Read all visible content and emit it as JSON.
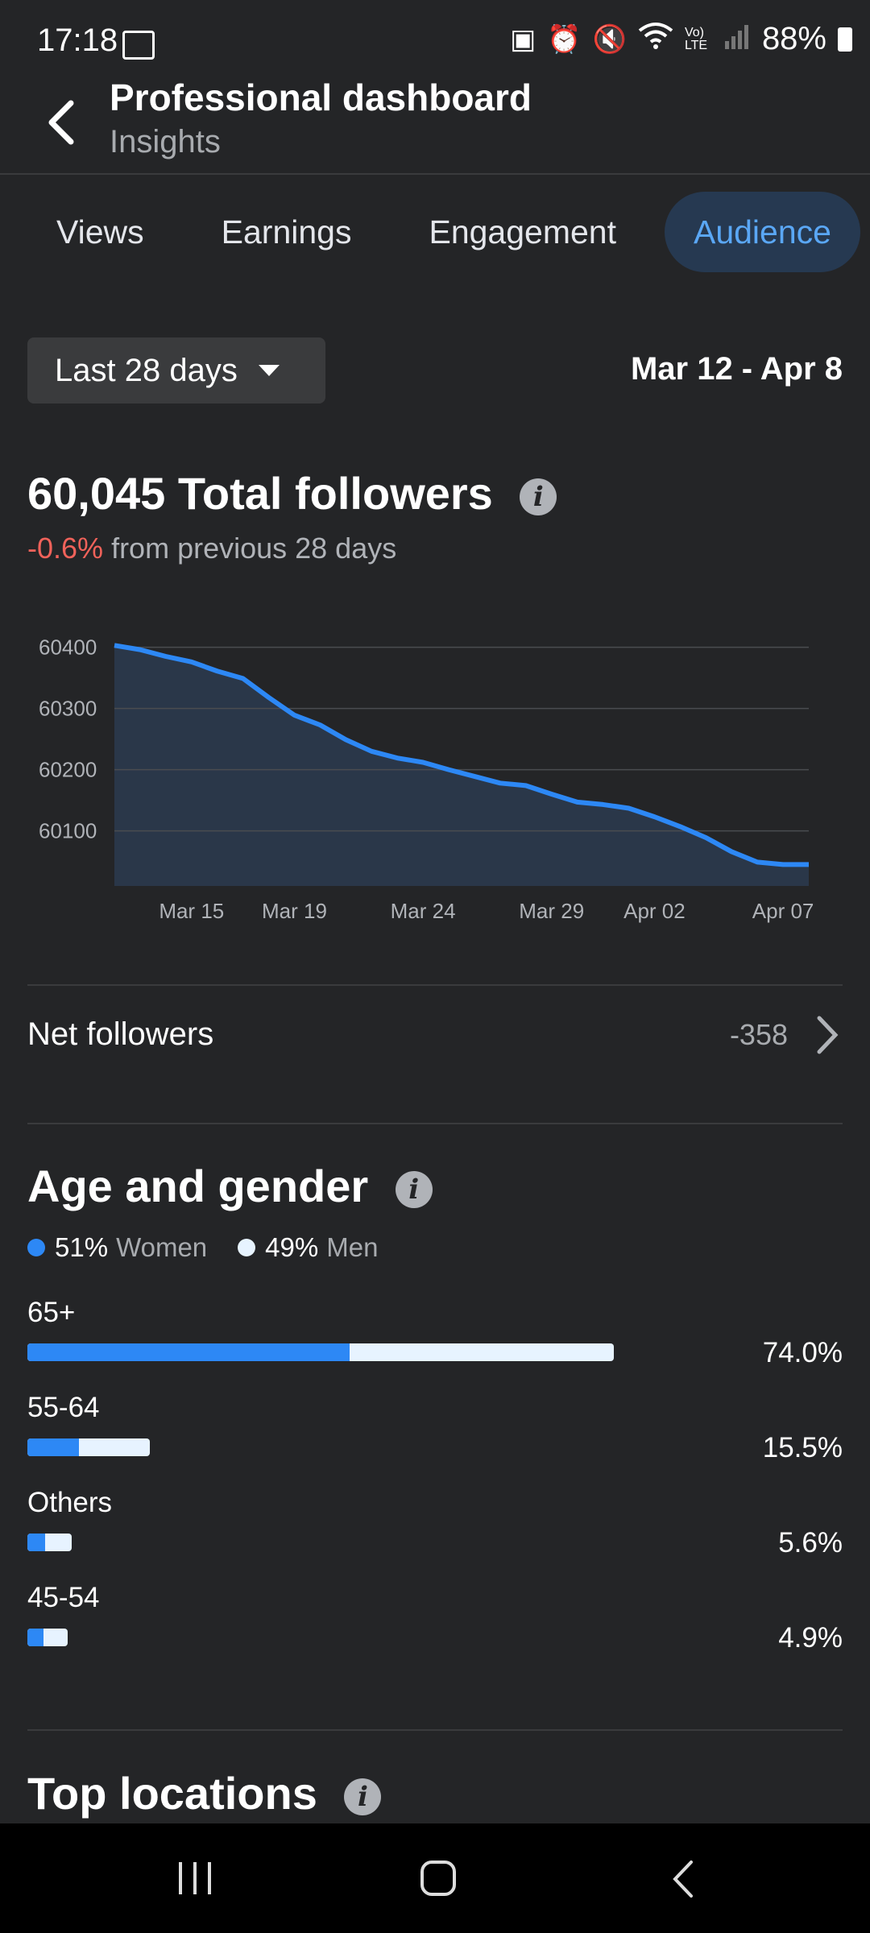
{
  "status_bar": {
    "time": "17:18",
    "battery": "88%",
    "icons": [
      "image-icon",
      "battery-saver-icon",
      "alarm-icon",
      "mute-icon",
      "wifi-icon",
      "volte-icon",
      "signal-icon",
      "battery-icon"
    ],
    "volte_label": "Vo) LTE"
  },
  "header": {
    "title": "Professional dashboard",
    "subtitle": "Insights"
  },
  "tabs": [
    {
      "label": "Views"
    },
    {
      "label": "Earnings"
    },
    {
      "label": "Engagement"
    },
    {
      "label": "Audience",
      "active": true
    }
  ],
  "range": {
    "label": "Last 28 days",
    "dates": "Mar 12 - Apr 8"
  },
  "followers": {
    "title": "60,045 Total followers",
    "change": "-0.6%",
    "change_suffix": "from previous 28 days"
  },
  "chart_data": {
    "type": "area",
    "x": [
      "Mar 12",
      "Mar 13",
      "Mar 14",
      "Mar 15",
      "Mar 16",
      "Mar 17",
      "Mar 18",
      "Mar 19",
      "Mar 20",
      "Mar 21",
      "Mar 22",
      "Mar 23",
      "Mar 24",
      "Mar 25",
      "Mar 26",
      "Mar 27",
      "Mar 28",
      "Mar 29",
      "Mar 30",
      "Mar 31",
      "Apr 01",
      "Apr 02",
      "Apr 03",
      "Apr 04",
      "Apr 05",
      "Apr 06",
      "Apr 07",
      "Apr 08"
    ],
    "values": [
      60403,
      60396,
      60385,
      60376,
      60361,
      60349,
      60318,
      60289,
      60273,
      60249,
      60230,
      60219,
      60212,
      60200,
      60189,
      60178,
      60174,
      60160,
      60147,
      60143,
      60137,
      60123,
      60107,
      60089,
      60066,
      60049,
      60045,
      60045
    ],
    "x_ticks": [
      "Mar 15",
      "Mar 19",
      "Mar 24",
      "Mar 29",
      "Apr 02",
      "Apr 07"
    ],
    "y_ticks": [
      "60400",
      "60300",
      "60200",
      "60100"
    ],
    "ylim": [
      60010,
      60410
    ],
    "grid": true,
    "color": "#2d88f5"
  },
  "net_followers": {
    "label": "Net followers",
    "value": "-358"
  },
  "age_gender": {
    "title": "Age and gender",
    "women_pct": "51%",
    "women_label": "Women",
    "men_pct": "49%",
    "men_label": "Men",
    "women_color": "#2d88f5",
    "men_color": "#e7f3ff",
    "rows": [
      {
        "label": "65+",
        "value": "74.0%",
        "share": 74.0,
        "women_fraction": 0.55
      },
      {
        "label": "55-64",
        "value": "15.5%",
        "share": 15.5,
        "women_fraction": 0.42
      },
      {
        "label": "Others",
        "value": "5.6%",
        "share": 5.6,
        "women_fraction": 0.4
      },
      {
        "label": "45-54",
        "value": "4.9%",
        "share": 4.9,
        "women_fraction": 0.4
      }
    ]
  },
  "top_locations": {
    "title": "Top locations"
  }
}
